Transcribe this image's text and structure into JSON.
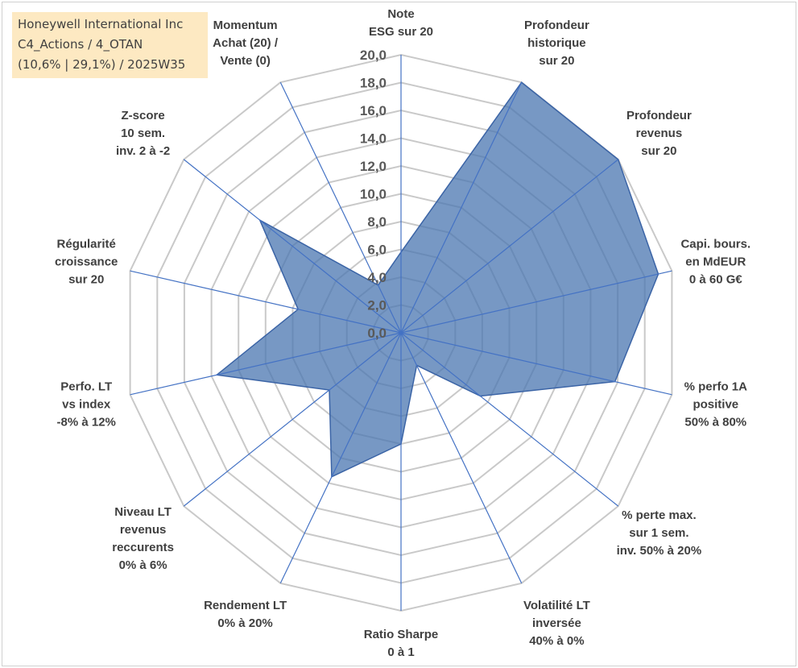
{
  "title": {
    "lines": [
      "Honeywell International Inc",
      "C4_Actions / 4_OTAN",
      "(10,6% | 29,1%) / 2025W35"
    ]
  },
  "chart_data": {
    "type": "radar",
    "title": "",
    "rlim": [
      0,
      20
    ],
    "r_ticks": [
      "0,0",
      "2,0",
      "4,0",
      "6,0",
      "8,0",
      "10,0",
      "12,0",
      "14,0",
      "16,0",
      "18,0",
      "20,0"
    ],
    "grid": true,
    "categories": [
      [
        "Note",
        "ESG sur 20"
      ],
      [
        "Profondeur",
        "historique",
        "sur 20"
      ],
      [
        "Profondeur",
        "revenus",
        "sur 20"
      ],
      [
        "Capi. bours.",
        "en MdEUR",
        "0 à 60 G€"
      ],
      [
        "% perfo 1A",
        "positive",
        "50% à 80%"
      ],
      [
        "% perte max.",
        "sur 1 sem.",
        "inv. 50% à 20%"
      ],
      [
        "Volatilité LT",
        "inversée",
        "40% à 0%"
      ],
      [
        "Ratio Sharpe",
        "0 à 1"
      ],
      [
        "Rendement LT",
        "0% à 20%"
      ],
      [
        "Niveau LT",
        "revenus",
        "reccurents",
        "0% à 6%"
      ],
      [
        "Perfo. LT",
        "vs index",
        "-8% à 12%"
      ],
      [
        "Régularité",
        "croissance",
        "sur 20"
      ],
      [
        "Z-score",
        "10 sem.",
        "inv. 2 à -2"
      ],
      [
        "Momentum",
        "Achat (20) /",
        "Vente (0)"
      ]
    ],
    "values": [
      5.8,
      20.0,
      20.0,
      19.0,
      15.8,
      7.3,
      2.6,
      8.0,
      11.5,
      6.6,
      13.6,
      7.6,
      13.0,
      3.8
    ],
    "fill_color": "#4a76b0",
    "grid_color": "#c9c9c9",
    "spoke_color": "#4472c4"
  }
}
